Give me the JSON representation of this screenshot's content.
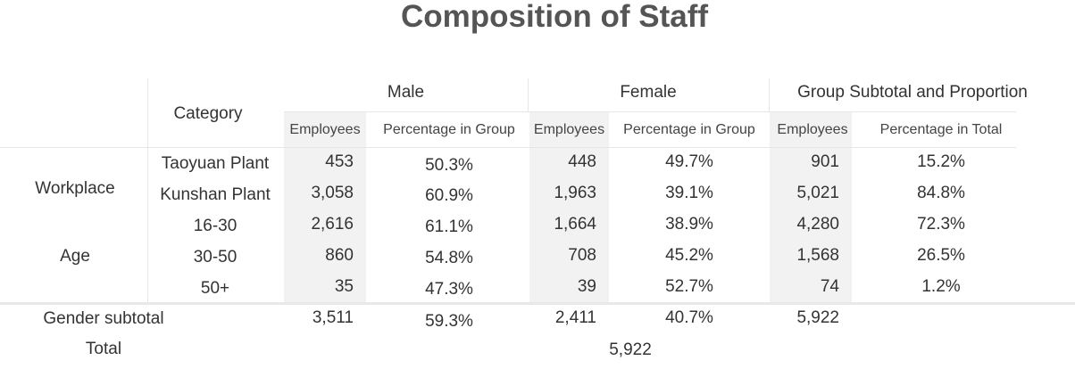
{
  "title": "Composition of Staff",
  "header": {
    "category": "Category",
    "groups": [
      "Male",
      "Female",
      "Group Subtotal and Proportion"
    ],
    "subheaders": [
      "Employees",
      "Percentage in Group",
      "Employees",
      "Percentage in Group",
      "Employees",
      "Percentage in Total"
    ]
  },
  "sections": [
    {
      "label": "Workplace"
    },
    {
      "label": "Age"
    }
  ],
  "rows": [
    {
      "label": "Taoyuan Plant",
      "male_emp": "453",
      "male_pct": "50.3%",
      "female_emp": "448",
      "female_pct": "49.7%",
      "sub_emp": "901",
      "sub_pct": "15.2%"
    },
    {
      "label": "Kunshan Plant",
      "male_emp": "3,058",
      "male_pct": "60.9%",
      "female_emp": "1,963",
      "female_pct": "39.1%",
      "sub_emp": "5,021",
      "sub_pct": "84.8%"
    },
    {
      "label": "16-30",
      "male_emp": "2,616",
      "male_pct": "61.1%",
      "female_emp": "1,664",
      "female_pct": "38.9%",
      "sub_emp": "4,280",
      "sub_pct": "72.3%"
    },
    {
      "label": "30-50",
      "male_emp": "860",
      "male_pct": "54.8%",
      "female_emp": "708",
      "female_pct": "45.2%",
      "sub_emp": "1,568",
      "sub_pct": "26.5%"
    },
    {
      "label": "50+",
      "male_emp": "35",
      "male_pct": "47.3%",
      "female_emp": "39",
      "female_pct": "52.7%",
      "sub_emp": "74",
      "sub_pct": "1.2%"
    }
  ],
  "gender_subtotal": {
    "label": "Gender subtotal",
    "male_emp": "3,511",
    "male_pct": "59.3%",
    "female_emp": "2,411",
    "female_pct": "40.7%",
    "sub_emp": "5,922"
  },
  "total": {
    "label": "Total",
    "value": "5,922"
  }
}
